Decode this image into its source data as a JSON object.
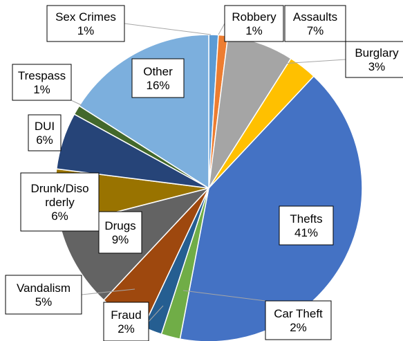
{
  "chart_data": {
    "type": "pie",
    "title": "",
    "slices": [
      {
        "label": "Sex Crimes",
        "value": 1,
        "pct_label": "1%",
        "color": "#5b9bd5"
      },
      {
        "label": "Robbery",
        "value": 1,
        "pct_label": "1%",
        "color": "#ed7d31"
      },
      {
        "label": "Assaults",
        "value": 7,
        "pct_label": "7%",
        "color": "#a5a5a5"
      },
      {
        "label": "Burglary",
        "value": 3,
        "pct_label": "3%",
        "color": "#ffc000"
      },
      {
        "label": "Thefts",
        "value": 41,
        "pct_label": "41%",
        "color": "#4472c4"
      },
      {
        "label": "Car Theft",
        "value": 2,
        "pct_label": "2%",
        "color": "#70ad47"
      },
      {
        "label": "Fraud",
        "value": 2,
        "pct_label": "2%",
        "color": "#255e91"
      },
      {
        "label": "Vandalism",
        "value": 5,
        "pct_label": "5%",
        "color": "#9e480e"
      },
      {
        "label": "Drugs",
        "value": 9,
        "pct_label": "9%",
        "color": "#636363"
      },
      {
        "label": "Drunk/Disorderly",
        "value": 6,
        "pct_label": "6%",
        "color": "#997300"
      },
      {
        "label": "DUI",
        "value": 6,
        "pct_label": "6%",
        "color": "#264478"
      },
      {
        "label": "Trespass",
        "value": 1,
        "pct_label": "1%",
        "color": "#43682b"
      },
      {
        "label": "Other",
        "value": 16,
        "pct_label": "16%",
        "color": "#7cafdd"
      }
    ],
    "legend": "none",
    "label_style": "callout boxes with category name and percentage"
  }
}
